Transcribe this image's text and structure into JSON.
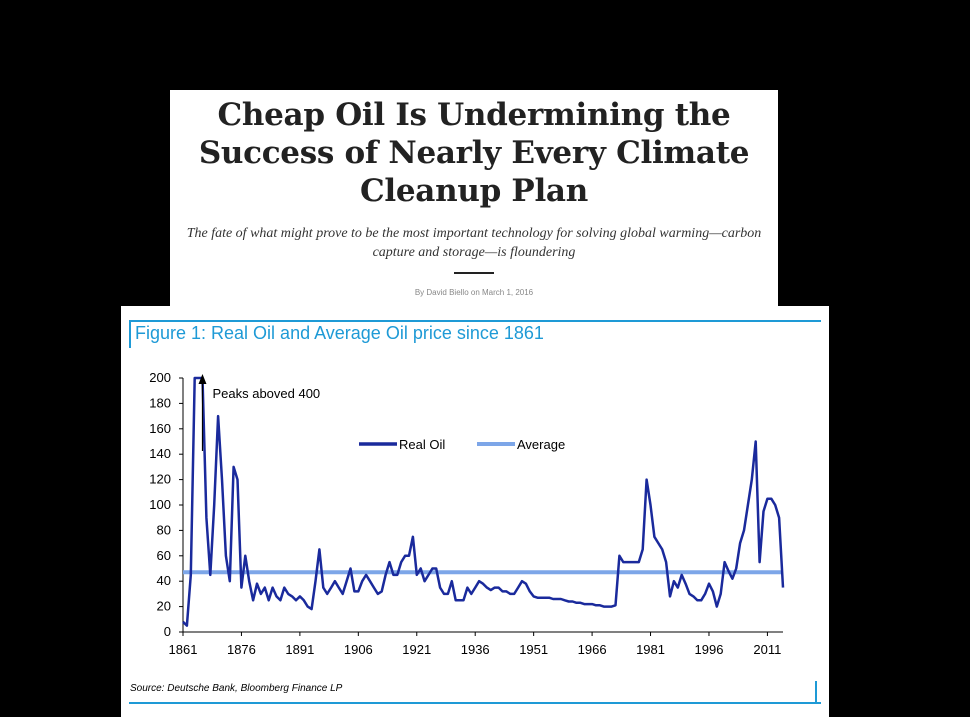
{
  "article": {
    "headline": "Cheap Oil Is Undermining the Success of Nearly Every Climate Cleanup Plan",
    "dek": "The fate of what might prove to be the most important technology for solving global warming—carbon capture and storage—is floundering",
    "byline": "By David Biello on March 1, 2016"
  },
  "figure": {
    "title": "Figure 1: Real Oil and Average Oil price since 1861",
    "source": "Source: Deutsche Bank, Bloomberg Finance LP",
    "accent_color": "#1e9ad6"
  },
  "chart_data": {
    "type": "line",
    "title": "Figure 1: Real Oil and Average Oil price since 1861",
    "xlabel": "",
    "ylabel": "",
    "xlim": [
      1861,
      2015
    ],
    "ylim": [
      0,
      200
    ],
    "x_ticks": [
      1861,
      1876,
      1891,
      1906,
      1921,
      1936,
      1951,
      1966,
      1981,
      1996,
      2011
    ],
    "y_ticks": [
      0,
      20,
      40,
      60,
      80,
      100,
      120,
      140,
      160,
      180,
      200
    ],
    "grid": false,
    "legend_position": "top-center",
    "annotation": "Peaks aboved 400",
    "series": [
      {
        "name": "Real Oil",
        "color": "#1a2a9c",
        "x": [
          1861,
          1862,
          1863,
          1864,
          1865,
          1866,
          1867,
          1868,
          1869,
          1870,
          1871,
          1872,
          1873,
          1874,
          1875,
          1876,
          1877,
          1878,
          1879,
          1880,
          1881,
          1882,
          1883,
          1884,
          1885,
          1886,
          1887,
          1888,
          1889,
          1890,
          1891,
          1892,
          1893,
          1894,
          1895,
          1896,
          1897,
          1898,
          1899,
          1900,
          1901,
          1902,
          1903,
          1904,
          1905,
          1906,
          1907,
          1908,
          1909,
          1910,
          1911,
          1912,
          1913,
          1914,
          1915,
          1916,
          1917,
          1918,
          1919,
          1920,
          1921,
          1922,
          1923,
          1924,
          1925,
          1926,
          1927,
          1928,
          1929,
          1930,
          1931,
          1932,
          1933,
          1934,
          1935,
          1936,
          1937,
          1938,
          1939,
          1940,
          1941,
          1942,
          1943,
          1944,
          1945,
          1946,
          1947,
          1948,
          1949,
          1950,
          1951,
          1952,
          1953,
          1954,
          1955,
          1956,
          1957,
          1958,
          1959,
          1960,
          1961,
          1962,
          1963,
          1964,
          1965,
          1966,
          1967,
          1968,
          1969,
          1970,
          1971,
          1972,
          1973,
          1974,
          1975,
          1976,
          1977,
          1978,
          1979,
          1980,
          1981,
          1982,
          1983,
          1984,
          1985,
          1986,
          1987,
          1988,
          1989,
          1990,
          1991,
          1992,
          1993,
          1994,
          1995,
          1996,
          1997,
          1998,
          1999,
          2000,
          2001,
          2002,
          2003,
          2004,
          2005,
          2006,
          2007,
          2008,
          2009,
          2010,
          2011,
          2012,
          2013,
          2014,
          2015
        ],
        "values": [
          8,
          5,
          45,
          200,
          200,
          200,
          90,
          45,
          100,
          170,
          120,
          60,
          40,
          130,
          120,
          35,
          60,
          40,
          25,
          38,
          30,
          35,
          25,
          35,
          28,
          25,
          35,
          30,
          28,
          25,
          28,
          25,
          20,
          18,
          40,
          65,
          35,
          30,
          35,
          40,
          35,
          30,
          40,
          50,
          32,
          32,
          40,
          45,
          40,
          35,
          30,
          32,
          45,
          55,
          45,
          45,
          55,
          60,
          60,
          75,
          45,
          50,
          40,
          45,
          50,
          50,
          35,
          30,
          30,
          40,
          25,
          25,
          25,
          35,
          30,
          35,
          40,
          38,
          35,
          33,
          35,
          35,
          32,
          32,
          30,
          30,
          35,
          40,
          38,
          32,
          28,
          27,
          27,
          27,
          27,
          26,
          26,
          26,
          25,
          24,
          24,
          23,
          23,
          22,
          22,
          22,
          21,
          21,
          20,
          20,
          20,
          21,
          60,
          55,
          55,
          55,
          55,
          55,
          65,
          120,
          100,
          75,
          70,
          65,
          55,
          28,
          40,
          35,
          45,
          38,
          30,
          28,
          25,
          25,
          30,
          38,
          32,
          20,
          30,
          55,
          48,
          42,
          50,
          70,
          80,
          100,
          120,
          150,
          55,
          95,
          105,
          105,
          100,
          90,
          35
        ],
        "peaks_above_axis": true
      },
      {
        "name": "Average",
        "color": "#7da6e8",
        "x": [
          1861,
          2015
        ],
        "values": [
          47,
          47
        ]
      }
    ]
  }
}
